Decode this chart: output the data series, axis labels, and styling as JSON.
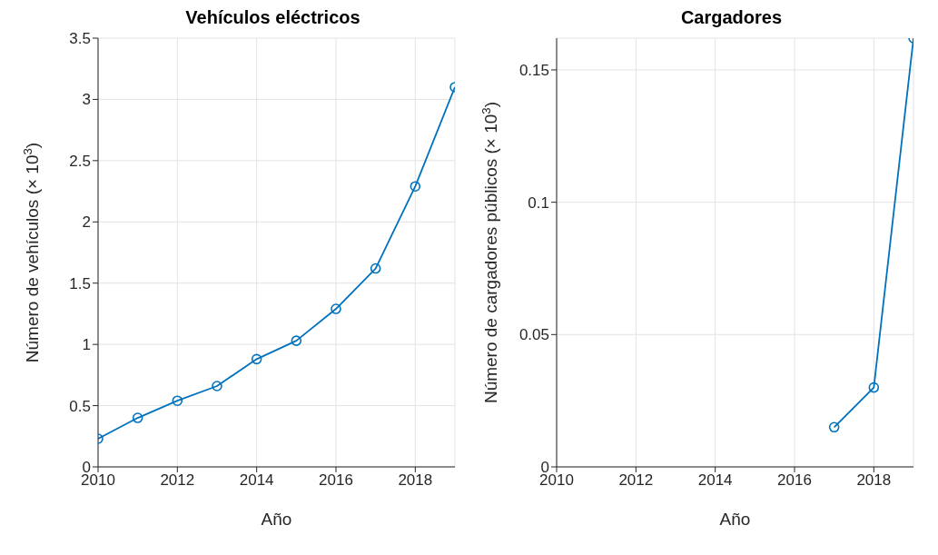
{
  "chart_data": [
    {
      "type": "line",
      "title": "Vehículos eléctricos",
      "xlabel": "Año",
      "ylabel": "Número de vehículos (× 10$^{3}$)",
      "x": [
        2010,
        2011,
        2012,
        2013,
        2014,
        2015,
        2016,
        2017,
        2018,
        2019
      ],
      "series": [
        {
          "color": "#0072bd",
          "values": [
            0.23,
            0.4,
            0.54,
            0.66,
            0.88,
            1.03,
            1.29,
            1.62,
            2.29,
            3.1
          ]
        }
      ],
      "xlim": [
        2010,
        2019
      ],
      "xticks": [
        2010,
        2012,
        2014,
        2016,
        2018
      ],
      "ylim": [
        0,
        3.5
      ],
      "yticks": [
        0,
        0.5,
        1,
        1.5,
        2,
        2.5,
        3,
        3.5
      ],
      "grid": true,
      "marker": "circle",
      "line_style": "solid"
    },
    {
      "type": "line",
      "title": "Cargadores",
      "xlabel": "Año",
      "ylabel": "Número de cargadores públicos (× 10$^{3}$)",
      "x": [
        2017,
        2018,
        2019
      ],
      "series": [
        {
          "color": "#0072bd",
          "values": [
            0.015,
            0.03,
            0.162
          ]
        }
      ],
      "xlim": [
        2010,
        2019
      ],
      "xticks": [
        2010,
        2012,
        2014,
        2016,
        2018
      ],
      "ylim": [
        0,
        0.162
      ],
      "yticks": [
        0,
        0.05,
        0.1,
        0.15
      ],
      "grid": true,
      "marker": "circle",
      "line_style": "solid"
    }
  ]
}
